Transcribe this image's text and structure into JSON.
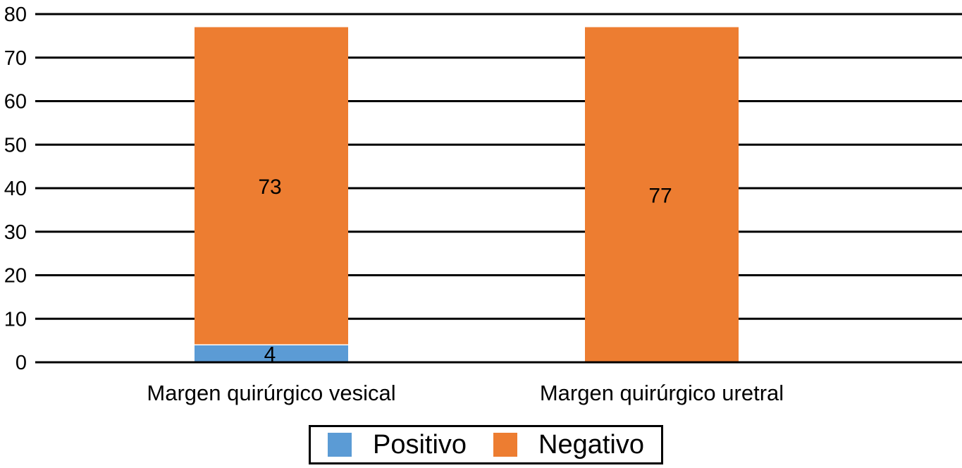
{
  "chart_data": {
    "type": "bar",
    "stacked": true,
    "categories": [
      "Margen quirúrgico vesical",
      "Margen quirúrgico uretral"
    ],
    "series": [
      {
        "name": "Positivo",
        "values": [
          4,
          0
        ],
        "color": "#5b9bd5",
        "labels": [
          "4",
          ""
        ]
      },
      {
        "name": "Negativo",
        "values": [
          73,
          77
        ],
        "color": "#ed7d31",
        "labels": [
          "73",
          "77"
        ]
      }
    ],
    "title": "",
    "xlabel": "",
    "ylabel": "",
    "ylim": [
      0,
      80
    ],
    "yticks": [
      0,
      10,
      20,
      30,
      40,
      50,
      60,
      70,
      80
    ],
    "grid": true,
    "legend_position": "bottom"
  }
}
